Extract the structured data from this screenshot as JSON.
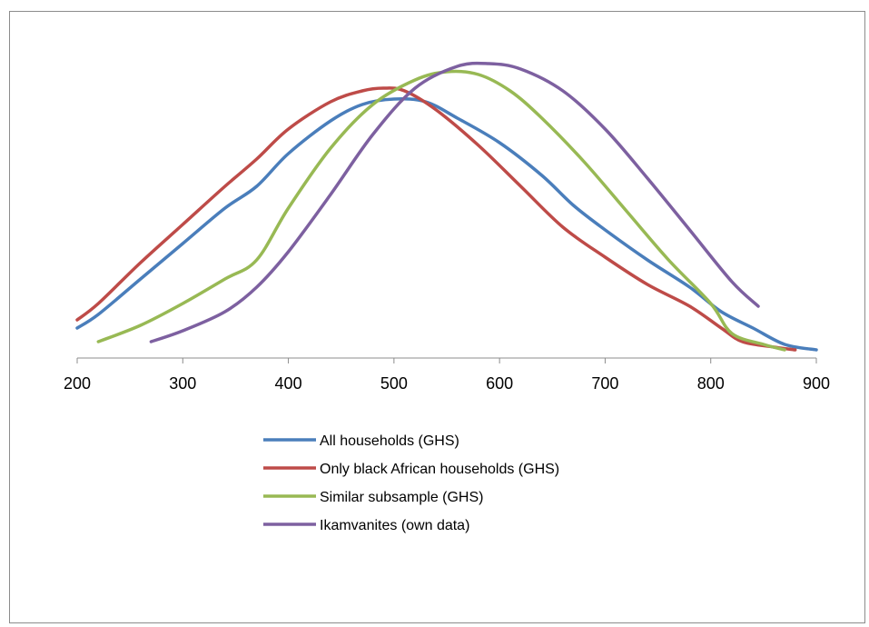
{
  "chart_data": {
    "type": "line",
    "title": "",
    "xlabel": "",
    "ylabel": "",
    "xlim": [
      200,
      900
    ],
    "x_ticks": [
      "200",
      "300",
      "400",
      "500",
      "600",
      "700",
      "800",
      "900"
    ],
    "y_axis_visible": false,
    "grid": false,
    "legend_position": "bottom-center",
    "series": [
      {
        "name": "All households (GHS)",
        "color": "#4a7ebb",
        "points": [
          [
            200,
            0.11
          ],
          [
            220,
            0.16
          ],
          [
            260,
            0.29
          ],
          [
            300,
            0.42
          ],
          [
            340,
            0.55
          ],
          [
            370,
            0.63
          ],
          [
            400,
            0.75
          ],
          [
            440,
            0.87
          ],
          [
            470,
            0.93
          ],
          [
            500,
            0.95
          ],
          [
            530,
            0.94
          ],
          [
            560,
            0.88
          ],
          [
            600,
            0.79
          ],
          [
            640,
            0.67
          ],
          [
            670,
            0.56
          ],
          [
            700,
            0.47
          ],
          [
            740,
            0.36
          ],
          [
            780,
            0.26
          ],
          [
            810,
            0.17
          ],
          [
            840,
            0.11
          ],
          [
            870,
            0.05
          ],
          [
            900,
            0.03
          ]
        ]
      },
      {
        "name": "Only black African households (GHS)",
        "color": "#be4b48",
        "points": [
          [
            200,
            0.14
          ],
          [
            220,
            0.2
          ],
          [
            260,
            0.35
          ],
          [
            300,
            0.49
          ],
          [
            340,
            0.63
          ],
          [
            370,
            0.73
          ],
          [
            400,
            0.84
          ],
          [
            440,
            0.94
          ],
          [
            470,
            0.98
          ],
          [
            490,
            0.99
          ],
          [
            510,
            0.98
          ],
          [
            540,
            0.91
          ],
          [
            580,
            0.78
          ],
          [
            620,
            0.63
          ],
          [
            660,
            0.48
          ],
          [
            700,
            0.37
          ],
          [
            740,
            0.27
          ],
          [
            780,
            0.19
          ],
          [
            810,
            0.11
          ],
          [
            830,
            0.06
          ],
          [
            860,
            0.04
          ],
          [
            880,
            0.03
          ]
        ]
      },
      {
        "name": "Similar subsample (GHS)",
        "color": "#98b954",
        "points": [
          [
            220,
            0.06
          ],
          [
            260,
            0.12
          ],
          [
            300,
            0.2
          ],
          [
            340,
            0.29
          ],
          [
            370,
            0.36
          ],
          [
            400,
            0.55
          ],
          [
            440,
            0.77
          ],
          [
            480,
            0.93
          ],
          [
            520,
            1.02
          ],
          [
            550,
            1.05
          ],
          [
            580,
            1.04
          ],
          [
            610,
            0.98
          ],
          [
            640,
            0.88
          ],
          [
            680,
            0.72
          ],
          [
            720,
            0.54
          ],
          [
            760,
            0.36
          ],
          [
            800,
            0.2
          ],
          [
            820,
            0.09
          ],
          [
            850,
            0.05
          ],
          [
            870,
            0.03
          ]
        ]
      },
      {
        "name": "Ikamvanites (own data)",
        "color": "#7d60a0",
        "points": [
          [
            270,
            0.06
          ],
          [
            300,
            0.1
          ],
          [
            340,
            0.17
          ],
          [
            370,
            0.26
          ],
          [
            400,
            0.39
          ],
          [
            440,
            0.6
          ],
          [
            480,
            0.82
          ],
          [
            520,
            0.99
          ],
          [
            560,
            1.07
          ],
          [
            590,
            1.08
          ],
          [
            620,
            1.06
          ],
          [
            660,
            0.98
          ],
          [
            700,
            0.84
          ],
          [
            740,
            0.66
          ],
          [
            780,
            0.47
          ],
          [
            820,
            0.28
          ],
          [
            845,
            0.19
          ]
        ]
      }
    ]
  }
}
